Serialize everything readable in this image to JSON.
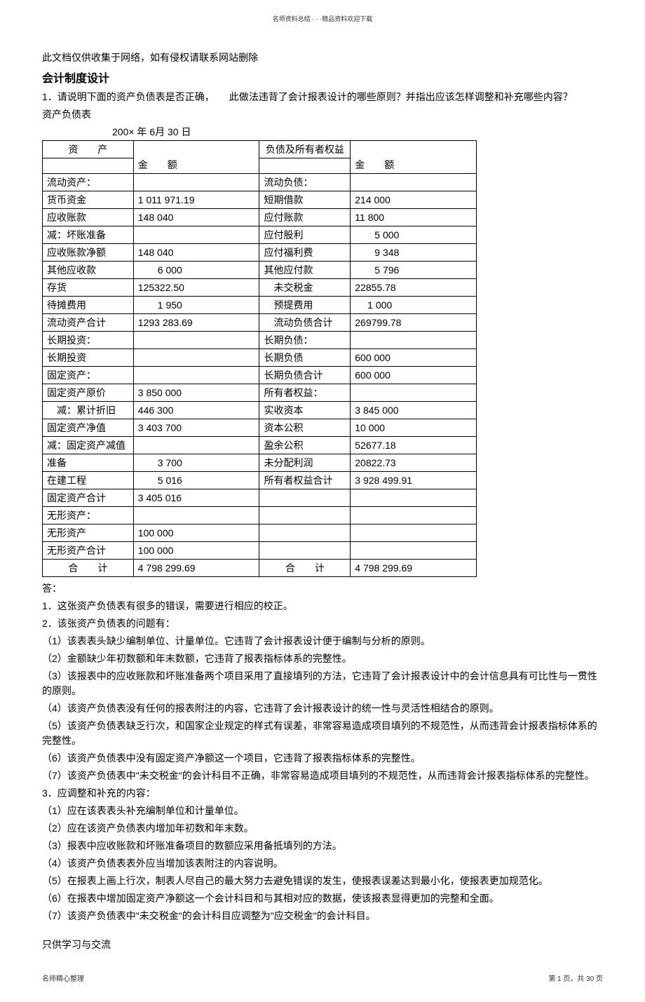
{
  "header": {
    "tiny": "名师资料总结 · · ·精品资料欢迎下载",
    "dots": "· · · · · · · · · · · · · · · ·"
  },
  "intro": {
    "notice": "此文档仅供收集于网络，如有侵权请联系网站删除",
    "title": "会计制度设计",
    "question": "1．请说明下面的资产负债表是否正确，　　此做法违背了会计报表设计的哪些原则？并指出应该怎样调整和补充哪些内容？",
    "tblname": "资产负债表",
    "date": "200× 年 6月 30 日"
  },
  "balance": {
    "headers": {
      "asset": "资　　产",
      "liab": "负债及所有者权益",
      "amt": "金　　额"
    },
    "rows": [
      {
        "a": "流动资产：",
        "v1": "",
        "l": "流动负债：",
        "v2": ""
      },
      {
        "a": "货币资金",
        "v1": "1 011 971.19",
        "l": "短期借款",
        "v2": "214 000"
      },
      {
        "a": "应收账款",
        "v1": "148 040",
        "l": "应付账款",
        "v2": "11 800"
      },
      {
        "a": "减：坏账准备",
        "v1": "",
        "l": "应付股利",
        "v2": "　　5 000"
      },
      {
        "a": "应收账款净额",
        "v1": "148 040",
        "l": "应付福利费",
        "v2": "　　9 348"
      },
      {
        "a": "其他应收款",
        "v1": "　　6 000",
        "l": "其他应付款",
        "v2": "　　5 796"
      },
      {
        "a": "存货",
        "v1": "125322.50",
        "l": "　未交税金",
        "v2": "22855.78"
      },
      {
        "a": "待摊费用",
        "v1": "　　1 950",
        "l": "　预提费用",
        "v2": "　 1 000"
      },
      {
        "a": "流动资产合计",
        "v1": "1293 283.69",
        "l": "　流动负债合计",
        "v2": "269799.78"
      },
      {
        "a": "长期投资：",
        "v1": "",
        "l": "长期负债：",
        "v2": ""
      },
      {
        "a": "长期投资",
        "v1": "",
        "l": "长期负债",
        "v2": "600 000"
      },
      {
        "a": "固定资产：",
        "v1": "",
        "l": "长期负债合计",
        "v2": "600 000"
      },
      {
        "a": "固定资产原价",
        "v1": "3 850 000",
        "l": "所有者权益：",
        "v2": ""
      },
      {
        "a": "　减：累计折旧",
        "v1": "446 300",
        "l": "实收资本",
        "v2": "3 845 000"
      },
      {
        "a": "固定资产净值",
        "v1": "3 403 700",
        "l": "资本公积",
        "v2": "10 000"
      },
      {
        "a": "减：固定资产减值",
        "v1": "",
        "l": "盈余公积",
        "v2": "52677.18"
      },
      {
        "a": "准备",
        "v1": "　　3 700",
        "l": "未分配利润",
        "v2": "20822.73"
      },
      {
        "a": "在建工程",
        "v1": "　　5 016",
        "l": "所有者权益合计",
        "v2": "3 928 499.91"
      },
      {
        "a": "固定资产合计",
        "v1": "3 405 016",
        "l": "",
        "v2": ""
      },
      {
        "a": "无形资产：",
        "v1": "",
        "l": "",
        "v2": ""
      },
      {
        "a": "无形资产",
        "v1": "100 000",
        "l": "",
        "v2": ""
      },
      {
        "a": "无形资产合计",
        "v1": "100 000",
        "l": "",
        "v2": ""
      }
    ],
    "total": {
      "a": "合　　计",
      "v1": "4 798 299.69",
      "l": "合　　计",
      "v2": "4 798 299.69"
    }
  },
  "answer": {
    "lines": [
      "答：",
      "1．这张资产负债表有很多的错误，需要进行相应的校正。",
      "2．该张资产负债表的问题有：",
      "（1）该表表头缺少编制单位、计量单位。它违背了会计报表设计便于编制与分析的原则。",
      "（2）金额缺少年初数额和年末数额，它违背了报表指标体系的完整性。",
      "（3）该报表中的应收账款和坏账准备两个项目采用了直接填列的方法，它违背了会计报表设计中的会计信息具有可比性与一贯性的原则。",
      "（4）该资产负债表没有任何的报表附注的内容，它违背了会计报表设计的统一性与灵活性相结合的原则。",
      "（5）该资产负债表缺乏行次，和国家企业规定的样式有误差，非常容易造成项目填列的不规范性，从而违背会计报表指标体系的完整性。",
      "（6）该资产负债表中没有固定资产净额这一个项目，它违背了报表指标体系的完整性。",
      "（7）该资产负债表中\"未交税金\"的会计科目不正确，非常容易造成项目填列的不规范性，从而违背会计报表指标体系的完整性。",
      "3．应调整和补充的内容：",
      "（1）应在该表表头补充编制单位和计量单位。",
      "（2）应在该资产负债表内增加年初数和年末数。",
      "（3）报表中应收账款和坏账准备项目的数额应采用备抵填列的方法。",
      "（4）该资产负债表表外应当增加该表附注的内容说明。",
      "（5）在报表上画上行次，制表人尽自己的最大努力去避免错误的发生，使报表误差达到最小化，使报表更加规范化。",
      "（6）在报表中增加固定资产净额这一个会计科目和与其相对应的数据，使该报表显得更加的完整和全面。",
      "（7）该资产负债表中\"未交税金\"的会计科目应调整为\"应交税金\"的会计科目。"
    ]
  },
  "footer": {
    "study": "只供学习与交流",
    "left": "名师精心整理",
    "leftdots": "· · · · · · ·",
    "right": "第 1 页，共 30 页",
    "rightdots": "· · · · · · ·"
  }
}
